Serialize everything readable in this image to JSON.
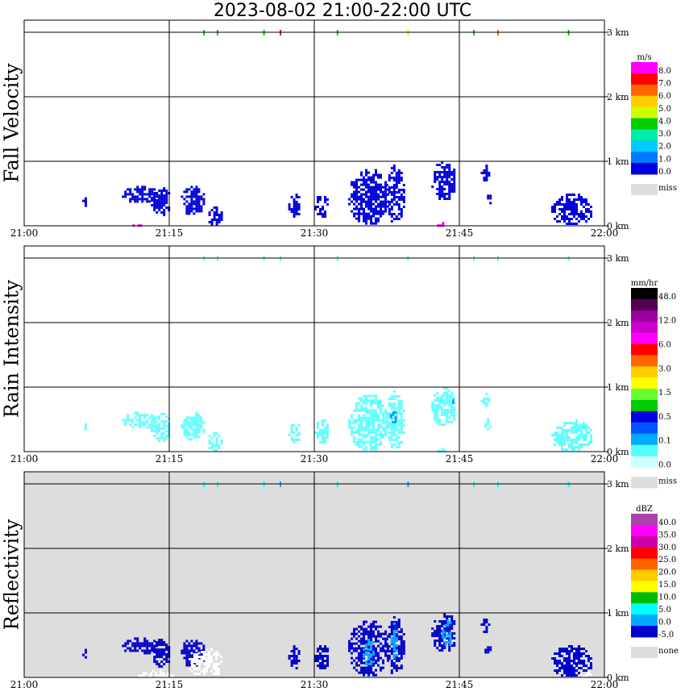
{
  "title": "2023-08-02   21:00-22:00 UTC",
  "chart_data": [
    {
      "type": "heatmap",
      "panel_label": "Fall Velocity",
      "xlabel": "",
      "ylabel": "Fall Velocity",
      "x_tick_labels": [
        "21:00",
        "21:15",
        "21:30",
        "21:45",
        "22:00"
      ],
      "y_tick_labels": [
        "0 km",
        "1 km",
        "2 km",
        "3 km"
      ],
      "xlim_minutes": [
        0,
        60
      ],
      "ylim_km": [
        0,
        3
      ],
      "grid": true,
      "background": "#ffffff",
      "colorbar": {
        "unit": "m/s",
        "labels": [
          "8.0",
          "7.0",
          "6.0",
          "5.0",
          "4.0",
          "3.0",
          "2.0",
          "1.0",
          "0.0"
        ],
        "colors": [
          "#ff00ff",
          "#ff0000",
          "#ff6600",
          "#ffcc00",
          "#ccff00",
          "#00cc00",
          "#00eeaa",
          "#00ccff",
          "#0077ff",
          "#0000dd"
        ],
        "missing_label": "miss",
        "missing_color": "#dddddd"
      },
      "features": [
        {
          "t": [
            6.0,
            6.3
          ],
          "h": [
            0.3,
            0.48
          ],
          "color": "#0000dd"
        },
        {
          "t": [
            10.1,
            13.8
          ],
          "h": [
            0.38,
            0.62
          ],
          "color": "#0000dd"
        },
        {
          "t": [
            13.1,
            15.1
          ],
          "h": [
            0.18,
            0.6
          ],
          "color": "#0000dd"
        },
        {
          "t": [
            16.2,
            18.6
          ],
          "h": [
            0.18,
            0.62
          ],
          "color": "#0000dd"
        },
        {
          "t": [
            18.8,
            20.4
          ],
          "h": [
            0.03,
            0.3
          ],
          "color": "#0000dd"
        },
        {
          "t": [
            27.3,
            28.5
          ],
          "h": [
            0.15,
            0.5
          ],
          "color": "#0000dd"
        },
        {
          "t": [
            30.0,
            31.5
          ],
          "h": [
            0.15,
            0.5
          ],
          "color": "#0000dd"
        },
        {
          "t": [
            33.5,
            37.6
          ],
          "h": [
            0.05,
            0.88
          ],
          "color": "#0000dd"
        },
        {
          "t": [
            37.4,
            39.2
          ],
          "h": [
            0.07,
            0.95
          ],
          "color": "#0000dd"
        },
        {
          "t": [
            42.1,
            44.6
          ],
          "h": [
            0.42,
            1.0
          ],
          "color": "#0000dd"
        },
        {
          "t": [
            47.2,
            48.0
          ],
          "h": [
            0.7,
            0.95
          ],
          "color": "#0000dd"
        },
        {
          "t": [
            47.6,
            48.3
          ],
          "h": [
            0.35,
            0.52
          ],
          "color": "#0000dd"
        },
        {
          "t": [
            54.5,
            58.6
          ],
          "h": [
            0.02,
            0.5
          ],
          "color": "#0000dd"
        },
        {
          "t": [
            11.2,
            12.3
          ],
          "h": [
            0.0,
            0.06
          ],
          "color": "#ff00ff"
        },
        {
          "t": [
            42.7,
            43.6
          ],
          "h": [
            0.0,
            0.06
          ],
          "color": "#ff00ff"
        }
      ],
      "cloud_top_marks": [
        {
          "t": 18.6,
          "color": "#00cc00"
        },
        {
          "t": 20.0,
          "color": "#00cc00"
        },
        {
          "t": 24.8,
          "color": "#00cc00"
        },
        {
          "t": 26.5,
          "color": "#cc0066"
        },
        {
          "t": 32.4,
          "color": "#00cc00"
        },
        {
          "t": 39.7,
          "color": "#ccff00"
        },
        {
          "t": 46.5,
          "color": "#00cc00"
        },
        {
          "t": 49.0,
          "color": "#ff6600"
        },
        {
          "t": 56.3,
          "color": "#00cc00"
        }
      ]
    },
    {
      "type": "heatmap",
      "panel_label": "Rain Intensity",
      "xlabel": "",
      "ylabel": "Rain Intensity",
      "x_tick_labels": [
        "21:00",
        "21:15",
        "21:30",
        "21:45",
        "22:00"
      ],
      "y_tick_labels": [
        "0 km",
        "1 km",
        "2 km",
        "3 km"
      ],
      "xlim_minutes": [
        0,
        60
      ],
      "ylim_km": [
        0,
        3
      ],
      "grid": true,
      "background": "#ffffff",
      "colorbar": {
        "unit": "mm/hr",
        "labels": [
          "48.0",
          "12.0",
          "6.0",
          "3.0",
          "1.5",
          "0.5",
          "0.1",
          "0.0"
        ],
        "colors": [
          "#000000",
          "#550055",
          "#990099",
          "#cc00cc",
          "#ff00ff",
          "#ff0000",
          "#ff6600",
          "#ffcc00",
          "#ffff00",
          "#66ff33",
          "#00cc00",
          "#0000dd",
          "#0055ff",
          "#00aaff",
          "#55ffff",
          "#ccffff"
        ],
        "missing_label": "miss",
        "missing_color": "#dddddd"
      },
      "features": [
        {
          "t": [
            6.0,
            6.3
          ],
          "h": [
            0.3,
            0.48
          ],
          "color": "#66ffff"
        },
        {
          "t": [
            10.1,
            13.8
          ],
          "h": [
            0.38,
            0.62
          ],
          "color": "#66ffff"
        },
        {
          "t": [
            13.1,
            15.1
          ],
          "h": [
            0.18,
            0.6
          ],
          "color": "#66ffff"
        },
        {
          "t": [
            16.2,
            18.6
          ],
          "h": [
            0.18,
            0.62
          ],
          "color": "#66ffff"
        },
        {
          "t": [
            18.8,
            20.4
          ],
          "h": [
            0.03,
            0.3
          ],
          "color": "#66ffff"
        },
        {
          "t": [
            27.3,
            28.5
          ],
          "h": [
            0.15,
            0.5
          ],
          "color": "#66ffff"
        },
        {
          "t": [
            30.0,
            31.5
          ],
          "h": [
            0.15,
            0.5
          ],
          "color": "#66ffff"
        },
        {
          "t": [
            33.5,
            37.6
          ],
          "h": [
            0.05,
            0.88
          ],
          "color": "#66ffff"
        },
        {
          "t": [
            37.4,
            39.2
          ],
          "h": [
            0.07,
            0.95
          ],
          "color": "#66ffff"
        },
        {
          "t": [
            37.8,
            38.4
          ],
          "h": [
            0.45,
            0.7
          ],
          "color": "#00aaff"
        },
        {
          "t": [
            42.1,
            44.6
          ],
          "h": [
            0.42,
            1.0
          ],
          "color": "#66ffff"
        },
        {
          "t": [
            44.0,
            44.3
          ],
          "h": [
            0.7,
            0.85
          ],
          "color": "#00aaff"
        },
        {
          "t": [
            47.2,
            48.0
          ],
          "h": [
            0.7,
            0.95
          ],
          "color": "#66ffff"
        },
        {
          "t": [
            47.6,
            48.3
          ],
          "h": [
            0.35,
            0.52
          ],
          "color": "#66ffff"
        },
        {
          "t": [
            54.5,
            58.6
          ],
          "h": [
            0.02,
            0.5
          ],
          "color": "#66ffff"
        },
        {
          "t": [
            42.7,
            43.6
          ],
          "h": [
            0.0,
            0.06
          ],
          "color": "#66ffff"
        }
      ],
      "cloud_top_marks": [
        {
          "t": 18.6,
          "color": "#66ffff"
        },
        {
          "t": 20.0,
          "color": "#66ffff"
        },
        {
          "t": 24.8,
          "color": "#66ffff"
        },
        {
          "t": 26.5,
          "color": "#66ffff"
        },
        {
          "t": 32.4,
          "color": "#66ffff"
        },
        {
          "t": 39.7,
          "color": "#66ffff"
        },
        {
          "t": 46.5,
          "color": "#66ffff"
        },
        {
          "t": 49.0,
          "color": "#66ffff"
        },
        {
          "t": 56.3,
          "color": "#66ffff"
        }
      ]
    },
    {
      "type": "heatmap",
      "panel_label": "Reflectivity",
      "xlabel": "",
      "ylabel": "Reflectivity",
      "x_tick_labels": [
        "21:00",
        "21:15",
        "21:30",
        "21:45",
        "22:00"
      ],
      "y_tick_labels": [
        "0 km",
        "1 km",
        "2 km",
        "3 km"
      ],
      "xlim_minutes": [
        0,
        60
      ],
      "ylim_km": [
        0,
        3
      ],
      "grid": true,
      "background": "#dddddd",
      "colorbar": {
        "unit": "dBZ",
        "labels": [
          "40.0",
          "35.0",
          "30.0",
          "25.0",
          "20.0",
          "15.0",
          "10.0",
          "5.0",
          "0.0",
          "-5.0"
        ],
        "colors": [
          "#aa44aa",
          "#ff00ff",
          "#cc00aa",
          "#ff0000",
          "#ff6600",
          "#ffcc00",
          "#ffff00",
          "#00bb00",
          "#00ffff",
          "#00aaff",
          "#0000cc"
        ],
        "missing_label": "none",
        "missing_color": "#dddddd"
      },
      "features": [
        {
          "t": [
            6.0,
            6.3
          ],
          "h": [
            0.3,
            0.48
          ],
          "color": "#0000cc"
        },
        {
          "t": [
            10.1,
            13.8
          ],
          "h": [
            0.38,
            0.62
          ],
          "color": "#0000cc"
        },
        {
          "t": [
            13.1,
            15.1
          ],
          "h": [
            0.18,
            0.6
          ],
          "color": "#0000cc"
        },
        {
          "t": [
            16.2,
            18.6
          ],
          "h": [
            0.18,
            0.62
          ],
          "color": "#0000cc"
        },
        {
          "t": [
            27.3,
            28.5
          ],
          "h": [
            0.15,
            0.5
          ],
          "color": "#0000cc"
        },
        {
          "t": [
            30.0,
            31.5
          ],
          "h": [
            0.15,
            0.5
          ],
          "color": "#0000cc"
        },
        {
          "t": [
            33.5,
            37.6
          ],
          "h": [
            0.05,
            0.88
          ],
          "color": "#0000cc"
        },
        {
          "t": [
            35.0,
            36.2
          ],
          "h": [
            0.2,
            0.6
          ],
          "color": "#00aaff"
        },
        {
          "t": [
            37.4,
            39.2
          ],
          "h": [
            0.07,
            0.95
          ],
          "color": "#0000cc"
        },
        {
          "t": [
            37.9,
            38.6
          ],
          "h": [
            0.3,
            0.85
          ],
          "color": "#00aaff"
        },
        {
          "t": [
            42.1,
            44.6
          ],
          "h": [
            0.42,
            1.0
          ],
          "color": "#0000cc"
        },
        {
          "t": [
            43.2,
            44.2
          ],
          "h": [
            0.5,
            0.9
          ],
          "color": "#00aaff"
        },
        {
          "t": [
            47.2,
            48.0
          ],
          "h": [
            0.7,
            0.95
          ],
          "color": "#0000cc"
        },
        {
          "t": [
            47.6,
            48.3
          ],
          "h": [
            0.35,
            0.52
          ],
          "color": "#0000cc"
        },
        {
          "t": [
            54.5,
            58.6
          ],
          "h": [
            0.02,
            0.5
          ],
          "color": "#0000cc"
        },
        {
          "t": [
            11.5,
            15.5
          ],
          "h": [
            0.0,
            0.12
          ],
          "color": "#ffffff"
        },
        {
          "t": [
            17.0,
            20.5
          ],
          "h": [
            0.0,
            0.45
          ],
          "color": "#ffffff"
        },
        {
          "t": [
            57.5,
            59.0
          ],
          "h": [
            0.0,
            0.1
          ],
          "color": "#ffffff"
        }
      ],
      "cloud_top_marks": [
        {
          "t": 18.6,
          "color": "#00ffff"
        },
        {
          "t": 20.0,
          "color": "#00ffff"
        },
        {
          "t": 24.8,
          "color": "#00ffff"
        },
        {
          "t": 26.5,
          "color": "#00aaff"
        },
        {
          "t": 32.4,
          "color": "#00ffff"
        },
        {
          "t": 39.7,
          "color": "#00aaff"
        },
        {
          "t": 46.5,
          "color": "#00ffff"
        },
        {
          "t": 49.0,
          "color": "#00ffff"
        },
        {
          "t": 56.3,
          "color": "#00ffff"
        }
      ]
    }
  ]
}
